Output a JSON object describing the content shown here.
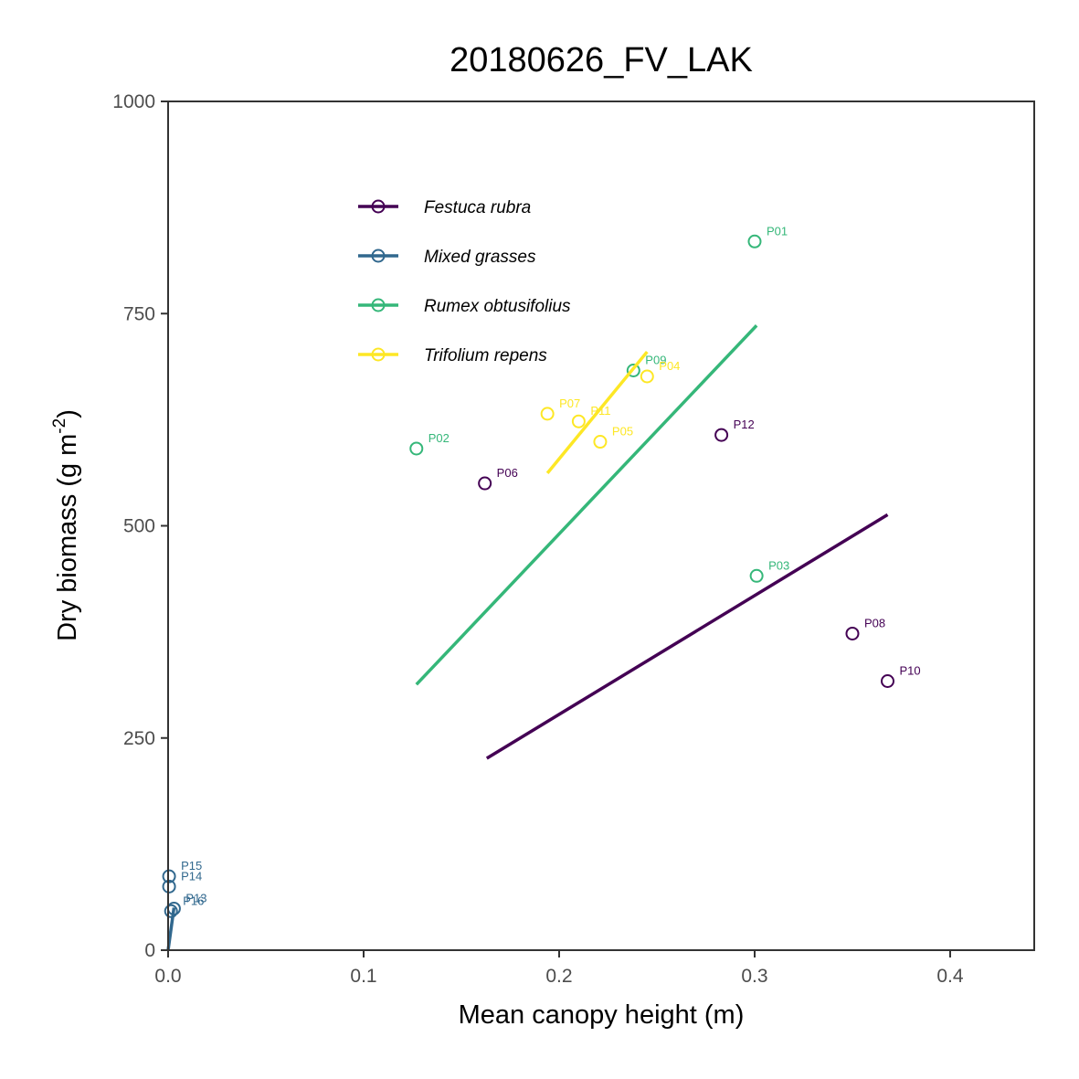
{
  "chart_data": {
    "type": "scatter",
    "title": "20180626_FV_LAK",
    "xlabel": "Mean canopy height (m)",
    "ylabel_main": "Dry biomass (g m",
    "ylabel_sup": "-2",
    "ylabel_end": ")",
    "xlim": [
      0,
      0.443
    ],
    "ylim": [
      0,
      1000
    ],
    "x_ticks": [
      {
        "value": 0.0,
        "label": "0.0"
      },
      {
        "value": 0.1,
        "label": "0.1"
      },
      {
        "value": 0.2,
        "label": "0.2"
      },
      {
        "value": 0.3,
        "label": "0.3"
      },
      {
        "value": 0.4,
        "label": "0.4"
      }
    ],
    "y_ticks": [
      {
        "value": 0,
        "label": "0"
      },
      {
        "value": 250,
        "label": "250"
      },
      {
        "value": 500,
        "label": "500"
      },
      {
        "value": 750,
        "label": "750"
      },
      {
        "value": 1000,
        "label": "1000"
      }
    ],
    "legend_position": "top-left-inside",
    "series": [
      {
        "name": "Festuca rubra",
        "color": "#440154",
        "points": [
          {
            "label": "P06",
            "x": 0.162,
            "y": 550
          },
          {
            "label": "P12",
            "x": 0.283,
            "y": 607
          },
          {
            "label": "P08",
            "x": 0.35,
            "y": 373
          },
          {
            "label": "P10",
            "x": 0.368,
            "y": 317
          }
        ],
        "fit": [
          [
            0.163,
            226
          ],
          [
            0.368,
            513
          ]
        ]
      },
      {
        "name": "Mixed grasses",
        "color": "#31688E",
        "points": [
          {
            "label": "P15",
            "x": 0.0005,
            "y": 87
          },
          {
            "label": "P14",
            "x": 0.0005,
            "y": 75
          },
          {
            "label": "P16",
            "x": 0.0015,
            "y": 46
          },
          {
            "label": "P13",
            "x": 0.003,
            "y": 49
          }
        ],
        "fit": [
          [
            0.0,
            0
          ],
          [
            0.003,
            50
          ]
        ]
      },
      {
        "name": "Rumex obtusifolius",
        "color": "#35B779",
        "points": [
          {
            "label": "P01",
            "x": 0.3,
            "y": 835
          },
          {
            "label": "P09",
            "x": 0.238,
            "y": 683
          },
          {
            "label": "P02",
            "x": 0.127,
            "y": 591
          },
          {
            "label": "P03",
            "x": 0.301,
            "y": 441
          }
        ],
        "fit": [
          [
            0.127,
            313
          ],
          [
            0.301,
            736
          ]
        ]
      },
      {
        "name": "Trifolium repens",
        "color": "#FDE725",
        "points": [
          {
            "label": "P04",
            "x": 0.245,
            "y": 676
          },
          {
            "label": "P07",
            "x": 0.194,
            "y": 632
          },
          {
            "label": "P11",
            "x": 0.21,
            "y": 623
          },
          {
            "label": "P05",
            "x": 0.221,
            "y": 599
          }
        ],
        "fit": [
          [
            0.194,
            562
          ],
          [
            0.245,
            705
          ]
        ]
      }
    ]
  }
}
